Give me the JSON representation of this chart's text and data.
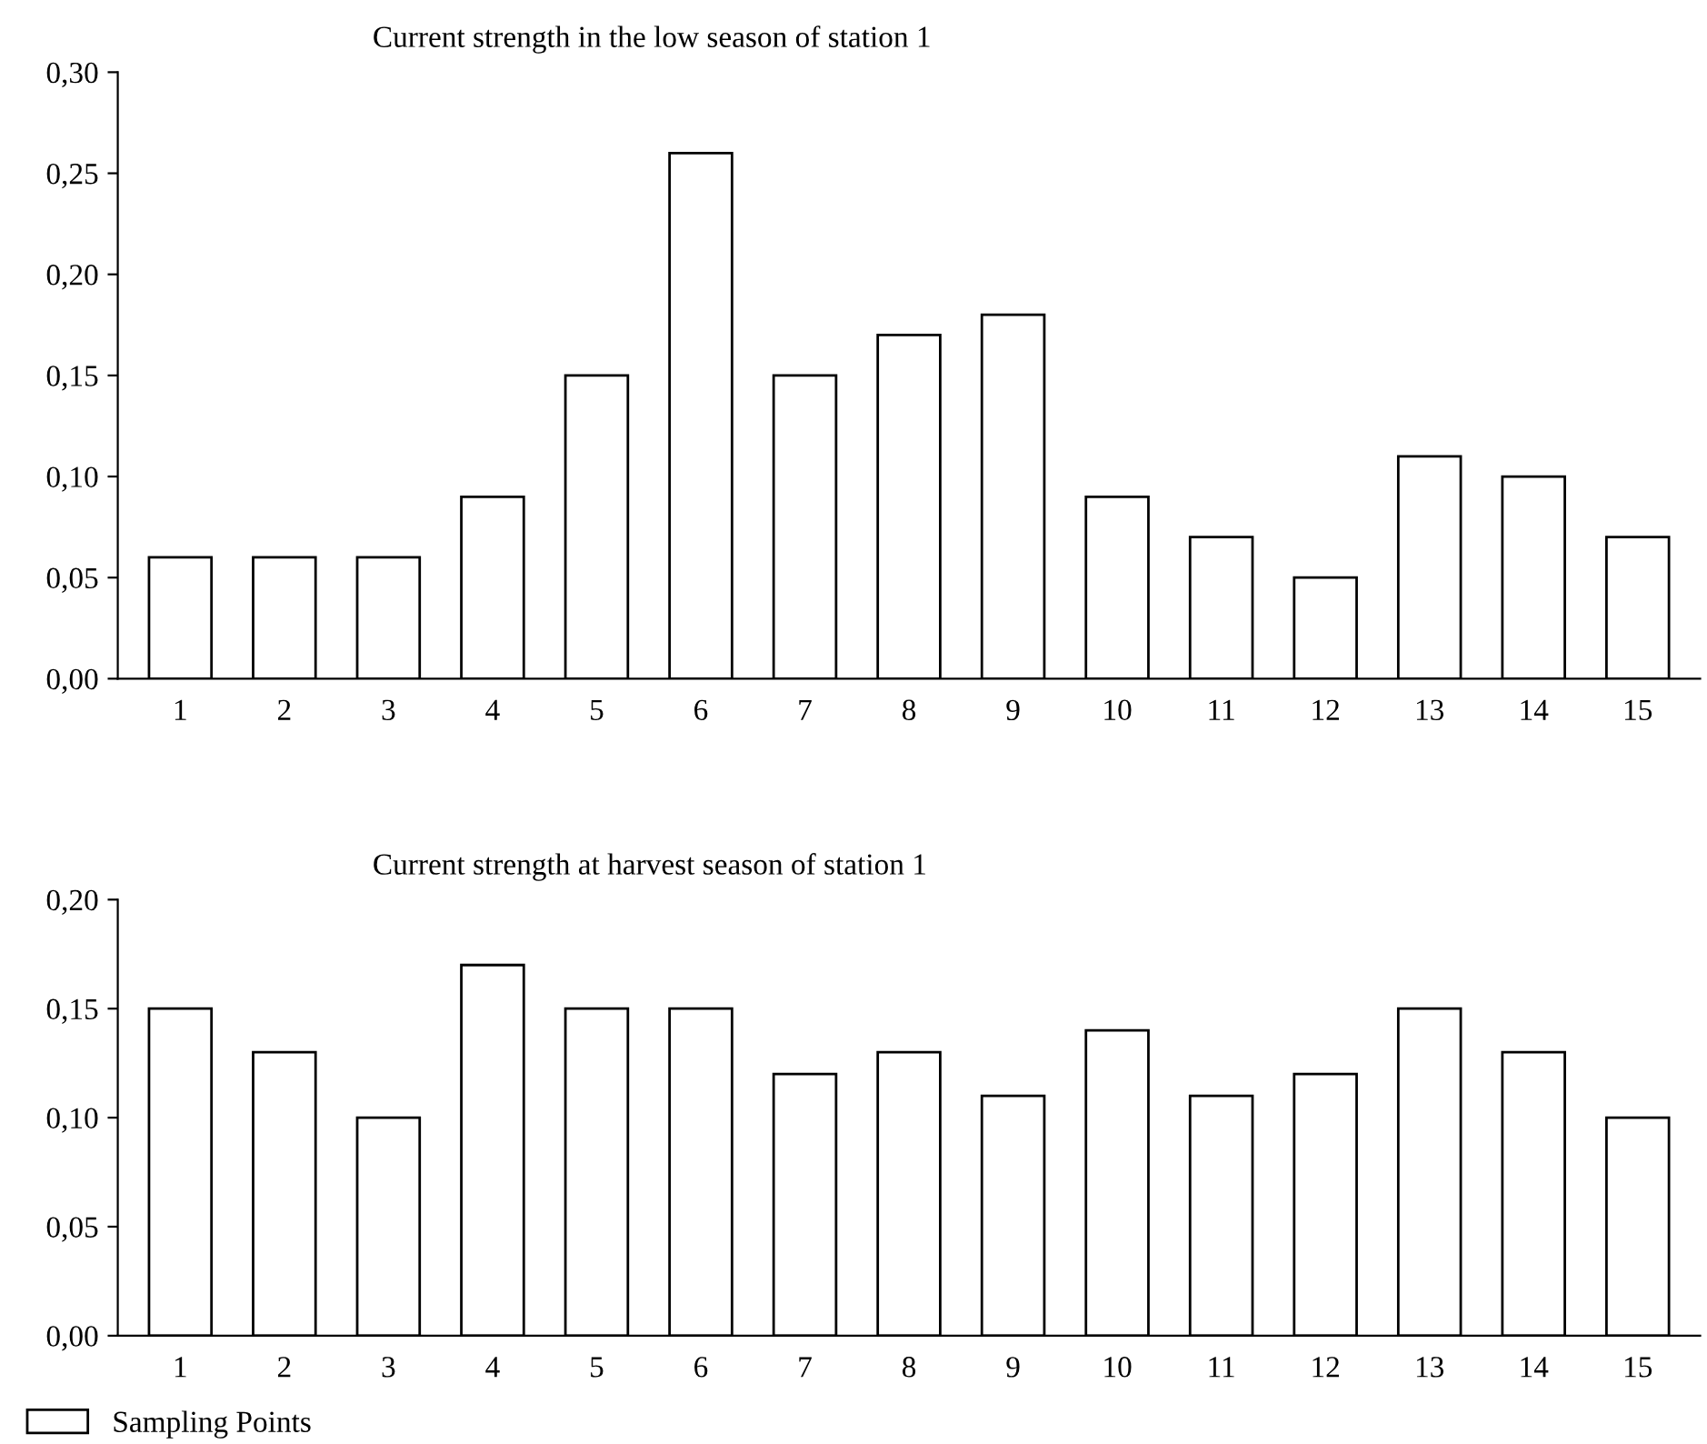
{
  "chart_data": [
    {
      "type": "bar",
      "title": "Current strength in the low season of station 1",
      "categories": [
        "1",
        "2",
        "3",
        "4",
        "5",
        "6",
        "7",
        "8",
        "9",
        "10",
        "11",
        "12",
        "13",
        "14",
        "15"
      ],
      "series": [
        {
          "color": "#ffffff",
          "values": [
            0.06,
            0.06,
            0.06,
            0.09,
            0.15,
            0.26,
            0.15,
            0.17,
            0.18,
            0.09,
            0.07,
            0.05,
            0.11,
            0.1,
            0.07
          ]
        }
      ],
      "ylim": [
        0,
        0.3
      ],
      "yticks": [
        {
          "value": 0,
          "label": "0,00"
        },
        {
          "value": 0.05,
          "label": "0,05"
        },
        {
          "value": 0.1,
          "label": "0,10"
        },
        {
          "value": 0.15,
          "label": "0,15"
        },
        {
          "value": 0.2,
          "label": "0,20"
        },
        {
          "value": 0.25,
          "label": "0,25"
        },
        {
          "value": 0.3,
          "label": "0,30"
        }
      ],
      "grid": false,
      "legend": false
    },
    {
      "type": "bar",
      "title": "Current strength at harvest season of station 1",
      "categories": [
        "1",
        "2",
        "3",
        "4",
        "5",
        "6",
        "7",
        "8",
        "9",
        "10",
        "11",
        "12",
        "13",
        "14",
        "15"
      ],
      "series": [
        {
          "name": "Sampling Points",
          "color": "#ffffff",
          "values": [
            0.15,
            0.13,
            0.1,
            0.17,
            0.15,
            0.15,
            0.12,
            0.13,
            0.11,
            0.14,
            0.11,
            0.12,
            0.15,
            0.13,
            0.1
          ]
        }
      ],
      "ylim": [
        0,
        0.2
      ],
      "yticks": [
        {
          "value": 0,
          "label": "0,00"
        },
        {
          "value": 0.05,
          "label": "0,05"
        },
        {
          "value": 0.1,
          "label": "0,10"
        },
        {
          "value": 0.15,
          "label": "0,15"
        },
        {
          "value": 0.2,
          "label": "0,20"
        }
      ],
      "grid": false,
      "legend": "bottom left"
    }
  ]
}
